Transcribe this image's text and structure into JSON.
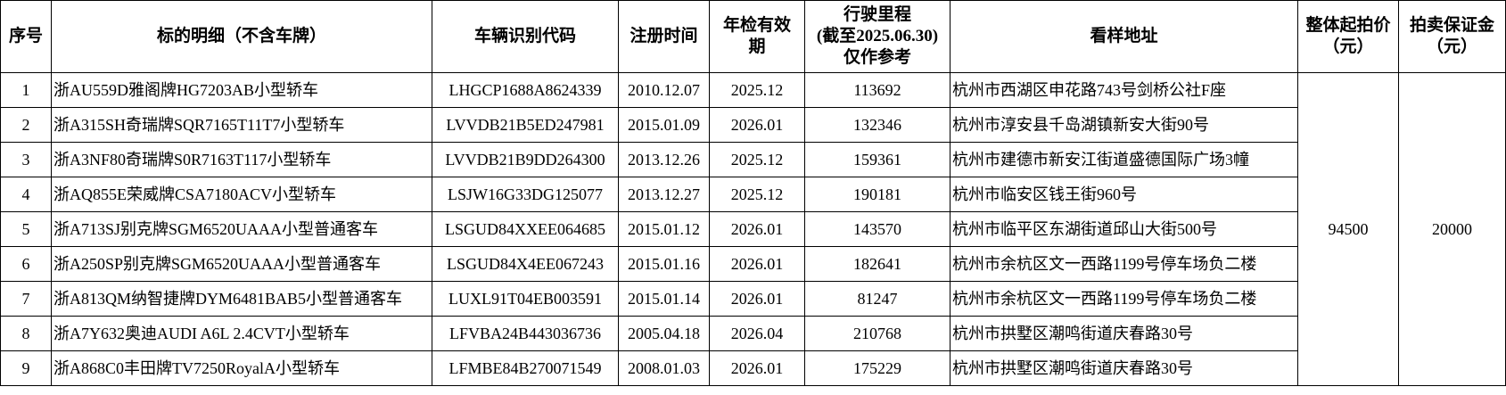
{
  "headers": [
    "序号",
    "标的明细（不含车牌）",
    "车辆识别代码",
    "注册时间",
    "年检有效期",
    "行驶里程（截至2025.06.30）仅作参考",
    "看样地址",
    "整体起拍价（元）",
    "拍卖保证金（元）"
  ],
  "header_lines": {
    "mileage": [
      "行驶里程",
      "(截至2025.06.30)",
      "仅作参考"
    ],
    "inspection": [
      "年检有效",
      "期"
    ],
    "price": [
      "整体起拍价",
      "（元）"
    ],
    "deposit": [
      "拍卖保证金",
      "（元）"
    ]
  },
  "rows": [
    {
      "no": "1",
      "item": "浙AU559D雅阁牌HG7203AB小型轿车",
      "vin": "LHGCP1688A8624339",
      "reg": "2010.12.07",
      "insp": "2025.12",
      "km": "113692",
      "addr": "杭州市西湖区申花路743号剑桥公社F座"
    },
    {
      "no": "2",
      "item": "浙A315SH奇瑞牌SQR7165T11T7小型轿车",
      "vin": "LVVDB21B5ED247981",
      "reg": "2015.01.09",
      "insp": "2026.01",
      "km": "132346",
      "addr": "杭州市淳安县千岛湖镇新安大街90号"
    },
    {
      "no": "3",
      "item": "浙A3NF80奇瑞牌S0R7163T117小型轿车",
      "vin": "LVVDB21B9DD264300",
      "reg": "2013.12.26",
      "insp": "2025.12",
      "km": "159361",
      "addr": "杭州市建德市新安江街道盛德国际广场3幢"
    },
    {
      "no": "4",
      "item": "浙AQ855E荣威牌CSA7180ACV小型轿车",
      "vin": "LSJW16G33DG125077",
      "reg": "2013.12.27",
      "insp": "2025.12",
      "km": "190181",
      "addr": "杭州市临安区钱王街960号"
    },
    {
      "no": "5",
      "item": "浙A713SJ别克牌SGM6520UAAA小型普通客车",
      "vin": "LSGUD84XXEE064685",
      "reg": "2015.01.12",
      "insp": "2026.01",
      "km": "143570",
      "addr": "杭州市临平区东湖街道邱山大街500号"
    },
    {
      "no": "6",
      "item": "浙A250SP别克牌SGM6520UAAA小型普通客车",
      "vin": "LSGUD84X4EE067243",
      "reg": "2015.01.16",
      "insp": "2026.01",
      "km": "182641",
      "addr": "杭州市余杭区文一西路1199号停车场负二楼"
    },
    {
      "no": "7",
      "item": "浙A813QM纳智捷牌DYM6481BAB5小型普通客车",
      "vin": "LUXL91T04EB003591",
      "reg": "2015.01.14",
      "insp": "2026.01",
      "km": "81247",
      "addr": "杭州市余杭区文一西路1199号停车场负二楼"
    },
    {
      "no": "8",
      "item": "浙A7Y632奥迪AUDI A6L 2.4CVT小型轿车",
      "vin": "LFVBA24B443036736",
      "reg": "2005.04.18",
      "insp": "2026.04",
      "km": "210768",
      "addr": "杭州市拱墅区潮鸣街道庆春路30号"
    },
    {
      "no": "9",
      "item": "浙A868C0丰田牌TV7250RoyalA小型轿车",
      "vin": "LFMBE84B270071549",
      "reg": "2008.01.03",
      "insp": "2026.01",
      "km": "175229",
      "addr": "杭州市拱墅区潮鸣街道庆春路30号"
    }
  ],
  "starting_price": "94500",
  "deposit": "20000"
}
